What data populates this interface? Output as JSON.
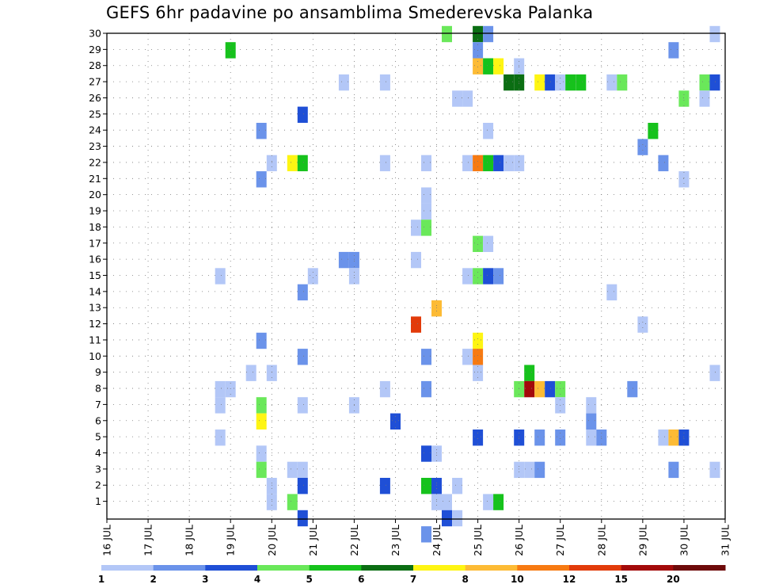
{
  "chart_data": {
    "type": "heatmap",
    "title": "GEFS 6hr padavine po ansamblima Smederevska Palanka",
    "xlabel": "",
    "ylabel": "",
    "x_ticks": [
      "16 JUL",
      "17 JUL",
      "18 JUL",
      "19 JUL",
      "20 JUL",
      "21 JUL",
      "22 JUL",
      "23 JUL",
      "24 JUL",
      "25 JUL",
      "26 JUL",
      "27 JUL",
      "28 JUL",
      "29 JUL",
      "30 JUL",
      "31 JUL"
    ],
    "xlim": [
      16,
      31
    ],
    "y_ticks": [
      1,
      2,
      3,
      4,
      5,
      6,
      7,
      8,
      9,
      10,
      11,
      12,
      13,
      14,
      15,
      16,
      17,
      18,
      19,
      20,
      21,
      22,
      23,
      24,
      25,
      26,
      27,
      28,
      29,
      30
    ],
    "ylim": [
      0,
      30
    ],
    "grid": true,
    "colorbar": {
      "colors": [
        "#b3c7f7",
        "#6b93ea",
        "#1f4fd6",
        "#6ae85a",
        "#16c21c",
        "#0b6e13",
        "#fef513",
        "#fdbb35",
        "#f77a12",
        "#e23b0a",
        "#a30a0a",
        "#6e0a0a"
      ],
      "labels": [
        "1",
        "2",
        "3",
        "4",
        "5",
        "6",
        "7",
        "8",
        "10",
        "12",
        "15",
        "20"
      ]
    },
    "cells": [
      {
        "day": 24.25,
        "member": 30,
        "level": 3
      },
      {
        "day": 25.0,
        "member": 30,
        "level": 5
      },
      {
        "day": 25.25,
        "member": 30,
        "level": 1
      },
      {
        "day": 30.75,
        "member": 30,
        "level": 0
      },
      {
        "day": 19.0,
        "member": 29,
        "level": 4
      },
      {
        "day": 25.0,
        "member": 29,
        "level": 1
      },
      {
        "day": 29.75,
        "member": 29,
        "level": 1
      },
      {
        "day": 25.0,
        "member": 28,
        "level": 7
      },
      {
        "day": 25.25,
        "member": 28,
        "level": 4
      },
      {
        "day": 25.5,
        "member": 28,
        "level": 6
      },
      {
        "day": 26.0,
        "member": 28,
        "level": 0
      },
      {
        "day": 21.75,
        "member": 27,
        "level": 0
      },
      {
        "day": 22.75,
        "member": 27,
        "level": 0
      },
      {
        "day": 25.75,
        "member": 27,
        "level": 5
      },
      {
        "day": 26.0,
        "member": 27,
        "level": 5
      },
      {
        "day": 26.5,
        "member": 27,
        "level": 6
      },
      {
        "day": 26.75,
        "member": 27,
        "level": 2
      },
      {
        "day": 27.0,
        "member": 27,
        "level": 0
      },
      {
        "day": 27.25,
        "member": 27,
        "level": 4
      },
      {
        "day": 27.5,
        "member": 27,
        "level": 4
      },
      {
        "day": 28.25,
        "member": 27,
        "level": 0
      },
      {
        "day": 28.5,
        "member": 27,
        "level": 3
      },
      {
        "day": 30.5,
        "member": 27,
        "level": 3
      },
      {
        "day": 30.75,
        "member": 27,
        "level": 2
      },
      {
        "day": 24.5,
        "member": 26,
        "level": 0
      },
      {
        "day": 24.75,
        "member": 26,
        "level": 0
      },
      {
        "day": 30.0,
        "member": 26,
        "level": 3
      },
      {
        "day": 30.5,
        "member": 26,
        "level": 0
      },
      {
        "day": 20.75,
        "member": 25,
        "level": 2
      },
      {
        "day": 19.75,
        "member": 24,
        "level": 1
      },
      {
        "day": 25.25,
        "member": 24,
        "level": 0
      },
      {
        "day": 29.25,
        "member": 24,
        "level": 4
      },
      {
        "day": 29.0,
        "member": 23,
        "level": 1
      },
      {
        "day": 20.0,
        "member": 22,
        "level": 0
      },
      {
        "day": 20.5,
        "member": 22,
        "level": 6
      },
      {
        "day": 20.75,
        "member": 22,
        "level": 4
      },
      {
        "day": 22.75,
        "member": 22,
        "level": 0
      },
      {
        "day": 23.75,
        "member": 22,
        "level": 0
      },
      {
        "day": 24.75,
        "member": 22,
        "level": 0
      },
      {
        "day": 25.0,
        "member": 22,
        "level": 8
      },
      {
        "day": 25.25,
        "member": 22,
        "level": 4
      },
      {
        "day": 25.5,
        "member": 22,
        "level": 2
      },
      {
        "day": 25.75,
        "member": 22,
        "level": 0
      },
      {
        "day": 26.0,
        "member": 22,
        "level": 0
      },
      {
        "day": 29.5,
        "member": 22,
        "level": 1
      },
      {
        "day": 19.75,
        "member": 21,
        "level": 1
      },
      {
        "day": 30.0,
        "member": 21,
        "level": 0
      },
      {
        "day": 23.75,
        "member": 20,
        "level": 0
      },
      {
        "day": 23.75,
        "member": 19,
        "level": 0
      },
      {
        "day": 23.5,
        "member": 18,
        "level": 0
      },
      {
        "day": 23.75,
        "member": 18,
        "level": 3
      },
      {
        "day": 25.0,
        "member": 17,
        "level": 3
      },
      {
        "day": 25.25,
        "member": 17,
        "level": 0
      },
      {
        "day": 21.75,
        "member": 16,
        "level": 1
      },
      {
        "day": 22.0,
        "member": 16,
        "level": 1
      },
      {
        "day": 23.5,
        "member": 16,
        "level": 0
      },
      {
        "day": 18.75,
        "member": 15,
        "level": 0
      },
      {
        "day": 21.0,
        "member": 15,
        "level": 0
      },
      {
        "day": 22.0,
        "member": 15,
        "level": 0
      },
      {
        "day": 24.75,
        "member": 15,
        "level": 0
      },
      {
        "day": 25.0,
        "member": 15,
        "level": 3
      },
      {
        "day": 25.25,
        "member": 15,
        "level": 2
      },
      {
        "day": 25.5,
        "member": 15,
        "level": 1
      },
      {
        "day": 20.75,
        "member": 14,
        "level": 1
      },
      {
        "day": 28.25,
        "member": 14,
        "level": 0
      },
      {
        "day": 24.0,
        "member": 13,
        "level": 7
      },
      {
        "day": 23.5,
        "member": 12,
        "level": 9
      },
      {
        "day": 29.0,
        "member": 12,
        "level": 0
      },
      {
        "day": 19.75,
        "member": 11,
        "level": 1
      },
      {
        "day": 25.0,
        "member": 11,
        "level": 6
      },
      {
        "day": 20.75,
        "member": 10,
        "level": 1
      },
      {
        "day": 23.75,
        "member": 10,
        "level": 1
      },
      {
        "day": 24.75,
        "member": 10,
        "level": 0
      },
      {
        "day": 25.0,
        "member": 10,
        "level": 8
      },
      {
        "day": 19.5,
        "member": 9,
        "level": 0
      },
      {
        "day": 20.0,
        "member": 9,
        "level": 0
      },
      {
        "day": 25.0,
        "member": 9,
        "level": 0
      },
      {
        "day": 26.25,
        "member": 9,
        "level": 4
      },
      {
        "day": 30.75,
        "member": 9,
        "level": 0
      },
      {
        "day": 18.75,
        "member": 8,
        "level": 0
      },
      {
        "day": 19.0,
        "member": 8,
        "level": 0
      },
      {
        "day": 22.75,
        "member": 8,
        "level": 0
      },
      {
        "day": 23.75,
        "member": 8,
        "level": 1
      },
      {
        "day": 26.0,
        "member": 8,
        "level": 3
      },
      {
        "day": 26.25,
        "member": 8,
        "level": 10
      },
      {
        "day": 26.5,
        "member": 8,
        "level": 7
      },
      {
        "day": 26.75,
        "member": 8,
        "level": 2
      },
      {
        "day": 27.0,
        "member": 8,
        "level": 3
      },
      {
        "day": 28.75,
        "member": 8,
        "level": 1
      },
      {
        "day": 18.75,
        "member": 7,
        "level": 0
      },
      {
        "day": 19.75,
        "member": 7,
        "level": 3
      },
      {
        "day": 20.75,
        "member": 7,
        "level": 0
      },
      {
        "day": 22.0,
        "member": 7,
        "level": 0
      },
      {
        "day": 27.0,
        "member": 7,
        "level": 0
      },
      {
        "day": 27.75,
        "member": 7,
        "level": 0
      },
      {
        "day": 19.75,
        "member": 6,
        "level": 6
      },
      {
        "day": 23.0,
        "member": 6,
        "level": 2
      },
      {
        "day": 27.75,
        "member": 6,
        "level": 1
      },
      {
        "day": 18.75,
        "member": 5,
        "level": 0
      },
      {
        "day": 25.0,
        "member": 5,
        "level": 2
      },
      {
        "day": 26.0,
        "member": 5,
        "level": 2
      },
      {
        "day": 26.5,
        "member": 5,
        "level": 1
      },
      {
        "day": 27.0,
        "member": 5,
        "level": 1
      },
      {
        "day": 27.75,
        "member": 5,
        "level": 0
      },
      {
        "day": 28.0,
        "member": 5,
        "level": 1
      },
      {
        "day": 29.5,
        "member": 5,
        "level": 0
      },
      {
        "day": 29.75,
        "member": 5,
        "level": 7
      },
      {
        "day": 30.0,
        "member": 5,
        "level": 2
      },
      {
        "day": 19.75,
        "member": 4,
        "level": 0
      },
      {
        "day": 23.75,
        "member": 4,
        "level": 2
      },
      {
        "day": 24.0,
        "member": 4,
        "level": 0
      },
      {
        "day": 19.75,
        "member": 3,
        "level": 3
      },
      {
        "day": 20.5,
        "member": 3,
        "level": 0
      },
      {
        "day": 20.75,
        "member": 3,
        "level": 0
      },
      {
        "day": 26.0,
        "member": 3,
        "level": 0
      },
      {
        "day": 26.25,
        "member": 3,
        "level": 0
      },
      {
        "day": 26.5,
        "member": 3,
        "level": 1
      },
      {
        "day": 29.75,
        "member": 3,
        "level": 1
      },
      {
        "day": 30.75,
        "member": 3,
        "level": 0
      },
      {
        "day": 20.0,
        "member": 2,
        "level": 0
      },
      {
        "day": 20.75,
        "member": 2,
        "level": 2
      },
      {
        "day": 22.75,
        "member": 2,
        "level": 2
      },
      {
        "day": 23.75,
        "member": 2,
        "level": 4
      },
      {
        "day": 24.0,
        "member": 2,
        "level": 2
      },
      {
        "day": 24.5,
        "member": 2,
        "level": 0
      },
      {
        "day": 20.0,
        "member": 1,
        "level": 0
      },
      {
        "day": 20.5,
        "member": 1,
        "level": 3
      },
      {
        "day": 24.0,
        "member": 1,
        "level": 0
      },
      {
        "day": 24.25,
        "member": 1,
        "level": 0
      },
      {
        "day": 25.25,
        "member": 1,
        "level": 0
      },
      {
        "day": 25.5,
        "member": 1,
        "level": 4
      },
      {
        "day": 20.75,
        "member": 0,
        "level": 2
      },
      {
        "day": 24.25,
        "member": 0,
        "level": 2
      },
      {
        "day": 24.5,
        "member": 0,
        "level": 0
      },
      {
        "day": 23.75,
        "member": -1,
        "level": 1
      }
    ]
  }
}
